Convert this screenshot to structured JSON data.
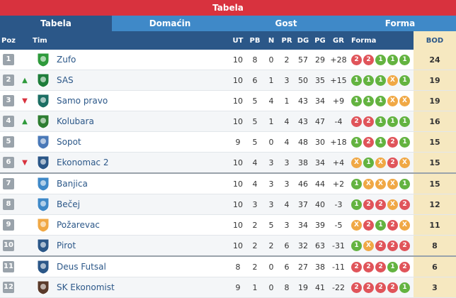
{
  "header": {
    "title": "Tabela"
  },
  "tabs": [
    {
      "label": "Tabela",
      "active": true
    },
    {
      "label": "Domaćin",
      "active": false
    },
    {
      "label": "Gost",
      "active": false
    },
    {
      "label": "Forma",
      "active": false
    }
  ],
  "columns": {
    "poz": "Poz",
    "tim": "Tim",
    "ut": "UT",
    "pb": "PB",
    "n": "N",
    "pr": "PR",
    "dg": "DG",
    "pg": "PG",
    "gr": "GR",
    "forma": "Forma",
    "bod": "BOD"
  },
  "colors": {
    "win": "#63b340",
    "draw": "#f0a845",
    "loss": "#e0545a",
    "header": "#2b5788",
    "accent": "#d8323e"
  },
  "rows": [
    {
      "pos": "1",
      "trend": "",
      "team": "Zufo",
      "crest": "zufo-crest-icon",
      "ut": "10",
      "pb": "8",
      "n": "0",
      "pr": "2",
      "dg": "57",
      "pg": "29",
      "gr": "+28",
      "form": [
        "2",
        "2",
        "1",
        "1",
        "1"
      ],
      "bod": "24"
    },
    {
      "pos": "2",
      "trend": "up",
      "team": "SAS",
      "crest": "sas-crest-icon",
      "ut": "10",
      "pb": "6",
      "n": "1",
      "pr": "3",
      "dg": "50",
      "pg": "35",
      "gr": "+15",
      "form": [
        "1",
        "1",
        "1",
        "X",
        "1"
      ],
      "bod": "19"
    },
    {
      "pos": "3",
      "trend": "down",
      "team": "Samo pravo",
      "crest": "samo-pravo-crest-icon",
      "ut": "10",
      "pb": "5",
      "n": "4",
      "pr": "1",
      "dg": "43",
      "pg": "34",
      "gr": "+9",
      "form": [
        "1",
        "1",
        "1",
        "X",
        "X"
      ],
      "bod": "19"
    },
    {
      "pos": "4",
      "trend": "up",
      "team": "Kolubara",
      "crest": "kolubara-crest-icon",
      "ut": "10",
      "pb": "5",
      "n": "1",
      "pr": "4",
      "dg": "43",
      "pg": "47",
      "gr": "-4",
      "form": [
        "2",
        "2",
        "1",
        "1",
        "1"
      ],
      "bod": "16"
    },
    {
      "pos": "5",
      "trend": "",
      "team": "Sopot",
      "crest": "sopot-crest-icon",
      "ut": "9",
      "pb": "5",
      "n": "0",
      "pr": "4",
      "dg": "48",
      "pg": "30",
      "gr": "+18",
      "form": [
        "1",
        "2",
        "1",
        "2",
        "1"
      ],
      "bod": "15"
    },
    {
      "pos": "6",
      "trend": "down",
      "team": "Ekonomac 2",
      "crest": "ekonomac-2-crest-icon",
      "ut": "10",
      "pb": "4",
      "n": "3",
      "pr": "3",
      "dg": "38",
      "pg": "34",
      "gr": "+4",
      "form": [
        "X",
        "1",
        "X",
        "2",
        "X"
      ],
      "bod": "15"
    },
    {
      "pos": "7",
      "trend": "",
      "team": "Banjica",
      "crest": "banjica-crest-icon",
      "ut": "10",
      "pb": "4",
      "n": "3",
      "pr": "3",
      "dg": "46",
      "pg": "44",
      "gr": "+2",
      "form": [
        "1",
        "X",
        "X",
        "X",
        "1"
      ],
      "bod": "15"
    },
    {
      "pos": "8",
      "trend": "",
      "team": "Bečej",
      "crest": "becej-crest-icon",
      "ut": "10",
      "pb": "3",
      "n": "3",
      "pr": "4",
      "dg": "37",
      "pg": "40",
      "gr": "-3",
      "form": [
        "1",
        "2",
        "2",
        "X",
        "2"
      ],
      "bod": "12"
    },
    {
      "pos": "9",
      "trend": "",
      "team": "Požarevac",
      "crest": "pozarevac-crest-icon",
      "ut": "10",
      "pb": "2",
      "n": "5",
      "pr": "3",
      "dg": "34",
      "pg": "39",
      "gr": "-5",
      "form": [
        "X",
        "2",
        "1",
        "2",
        "X"
      ],
      "bod": "11"
    },
    {
      "pos": "10",
      "trend": "",
      "team": "Pirot",
      "crest": "pirot-crest-icon",
      "ut": "10",
      "pb": "2",
      "n": "2",
      "pr": "6",
      "dg": "32",
      "pg": "63",
      "gr": "-31",
      "form": [
        "1",
        "X",
        "2",
        "2",
        "2"
      ],
      "bod": "8"
    },
    {
      "pos": "11",
      "trend": "",
      "team": "Deus Futsal",
      "crest": "deus-futsal-crest-icon",
      "ut": "8",
      "pb": "2",
      "n": "0",
      "pr": "6",
      "dg": "27",
      "pg": "38",
      "gr": "-11",
      "form": [
        "2",
        "2",
        "2",
        "1",
        "2"
      ],
      "bod": "6"
    },
    {
      "pos": "12",
      "trend": "",
      "team": "SK Ekonomist",
      "crest": "sk-ekonomist-crest-icon",
      "ut": "9",
      "pb": "1",
      "n": "0",
      "pr": "8",
      "dg": "19",
      "pg": "41",
      "gr": "-22",
      "form": [
        "2",
        "2",
        "2",
        "2",
        "1"
      ],
      "bod": "3"
    }
  ]
}
